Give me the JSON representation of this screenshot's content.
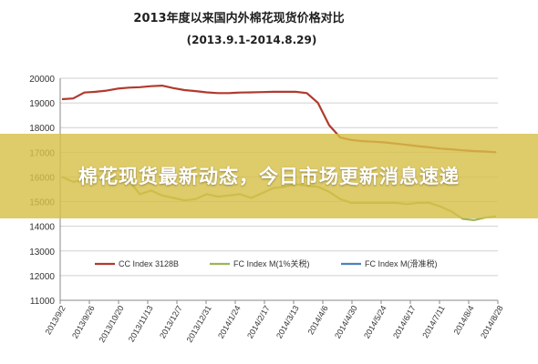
{
  "banner": {
    "text": "棉花现货最新动态，今日市场更新消息速递"
  },
  "chart_data": {
    "type": "line",
    "title": "2013年度以来国内外棉花现货价格对比",
    "subtitle": "(2013.9.1-2014.8.29)",
    "ylim": [
      11000,
      20000
    ],
    "yticks": [
      11000,
      12000,
      13000,
      14000,
      15000,
      16000,
      17000,
      18000,
      19000,
      20000
    ],
    "xticks": [
      "2013/9/2",
      "2013/9/26",
      "2013/10/20",
      "2013/11/13",
      "2013/12/7",
      "2013/12/31",
      "2014/1/24",
      "2014/2/17",
      "2014/3/13",
      "2014/4/6",
      "2014/4/30",
      "2014/5/24",
      "2014/6/17",
      "2014/7/11",
      "2014/8/4",
      "2014/8/28"
    ],
    "grid": true,
    "legend_position": "bottom-inside",
    "series": [
      {
        "name": "CC Index 3128B",
        "color": "#b03a2e",
        "values": [
          19150,
          19180,
          19420,
          19450,
          19500,
          19580,
          19620,
          19640,
          19680,
          19700,
          19600,
          19520,
          19480,
          19430,
          19400,
          19400,
          19420,
          19430,
          19440,
          19450,
          19450,
          19450,
          19400,
          19000,
          18100,
          17600,
          17500,
          17450,
          17430,
          17400,
          17350,
          17300,
          17250,
          17200,
          17150,
          17120,
          17080,
          17050,
          17030,
          17000
        ]
      },
      {
        "name": "FC Index M(1%关税)",
        "color": "#9bb55a",
        "values": [
          16000,
          15800,
          15900,
          16050,
          15950,
          15900,
          15850,
          15300,
          15450,
          15250,
          15150,
          15050,
          15100,
          15300,
          15200,
          15250,
          15300,
          15150,
          15350,
          15550,
          15600,
          15700,
          15650,
          15600,
          15400,
          15100,
          14950,
          14950,
          14950,
          14950,
          14950,
          14900,
          14950,
          14950,
          14800,
          14600,
          14300,
          14250,
          14350,
          14400
        ]
      },
      {
        "name": "FC Index M(滑准税)",
        "color": "#4e81b7",
        "values": []
      }
    ]
  },
  "legend_colors": {
    "fc_slide_duty_line_visible": "#9bb55a"
  }
}
